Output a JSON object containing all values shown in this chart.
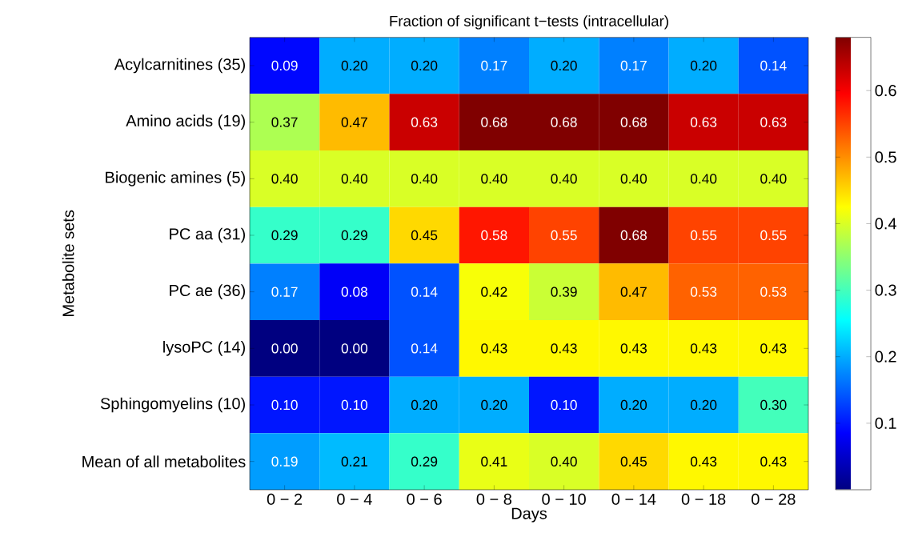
{
  "chart_data": {
    "type": "heatmap",
    "title": "Fraction of significant t−tests (intracellular)",
    "xlabel": "Days",
    "ylabel": "Metabolite sets",
    "categories": [
      "0 − 2",
      "0 − 4",
      "0 − 6",
      "0 − 8",
      "0 − 10",
      "0 − 14",
      "0 − 18",
      "0 − 28"
    ],
    "y_categories": [
      "Acylcarnitines (35)",
      "Amino acids (19)",
      "Biogenic amines (5)",
      "PC aa (31)",
      "PC ae (36)",
      "lysoPC (14)",
      "Sphingomyelins (10)",
      "Mean of all metabolites"
    ],
    "cells": [
      [
        0.09,
        0.2,
        0.2,
        0.17,
        0.2,
        0.17,
        0.2,
        0.14
      ],
      [
        0.37,
        0.47,
        0.63,
        0.68,
        0.68,
        0.68,
        0.63,
        0.63
      ],
      [
        0.4,
        0.4,
        0.4,
        0.4,
        0.4,
        0.4,
        0.4,
        0.4
      ],
      [
        0.29,
        0.29,
        0.45,
        0.58,
        0.55,
        0.68,
        0.55,
        0.55
      ],
      [
        0.17,
        0.08,
        0.14,
        0.42,
        0.39,
        0.47,
        0.53,
        0.53
      ],
      [
        0.0,
        0.0,
        0.14,
        0.43,
        0.43,
        0.43,
        0.43,
        0.43
      ],
      [
        0.1,
        0.1,
        0.2,
        0.2,
        0.1,
        0.2,
        0.2,
        0.3
      ],
      [
        0.19,
        0.21,
        0.29,
        0.41,
        0.4,
        0.45,
        0.43,
        0.43
      ]
    ],
    "cell_labels": [
      [
        "0.09",
        "0.20",
        "0.20",
        "0.17",
        "0.20",
        "0.17",
        "0.20",
        "0.14"
      ],
      [
        "0.37",
        "0.47",
        "0.63",
        "0.68",
        "0.68",
        "0.68",
        "0.63",
        "0.63"
      ],
      [
        "0.40",
        "0.40",
        "0.40",
        "0.40",
        "0.40",
        "0.40",
        "0.40",
        "0.40"
      ],
      [
        "0.29",
        "0.29",
        "0.45",
        "0.58",
        "0.55",
        "0.68",
        "0.55",
        "0.55"
      ],
      [
        "0.17",
        "0.08",
        "0.14",
        "0.42",
        "0.39",
        "0.47",
        "0.53",
        "0.53"
      ],
      [
        "0.00",
        "0.00",
        "0.14",
        "0.43",
        "0.43",
        "0.43",
        "0.43",
        "0.43"
      ],
      [
        "0.10",
        "0.10",
        "0.20",
        "0.20",
        "0.10",
        "0.20",
        "0.20",
        "0.30"
      ],
      [
        "0.19",
        "0.21",
        "0.29",
        "0.41",
        "0.40",
        "0.45",
        "0.43",
        "0.43"
      ]
    ],
    "clim": [
      0,
      0.68
    ],
    "cticks": [
      0.1,
      0.2,
      0.3,
      0.4,
      0.5,
      0.6
    ]
  }
}
